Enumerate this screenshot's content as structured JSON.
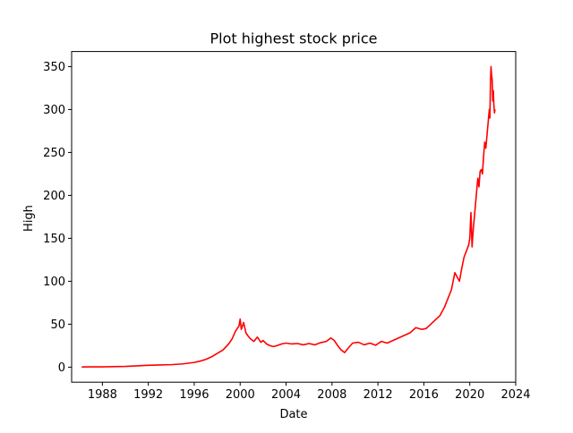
{
  "chart_data": {
    "type": "line",
    "title": "Plot highest stock price",
    "xlabel": "Date",
    "ylabel": "High",
    "x_ticks": [
      "1988",
      "1992",
      "1996",
      "2000",
      "2004",
      "2008",
      "2012",
      "2016",
      "2020",
      "2024"
    ],
    "y_ticks": [
      "0",
      "50",
      "100",
      "150",
      "200",
      "250",
      "300",
      "350"
    ],
    "xlim": [
      1985.32,
      2024.0
    ],
    "ylim": [
      -17.5,
      367.5
    ],
    "grid": false,
    "legend": "none",
    "series": [
      {
        "color": "#ff0000",
        "x": [
          1986.2,
          1987.0,
          1988.0,
          1989.0,
          1990.0,
          1991.0,
          1992.0,
          1993.0,
          1994.0,
          1995.0,
          1996.0,
          1996.5,
          1997.0,
          1997.5,
          1998.0,
          1998.5,
          1999.0,
          1999.3,
          1999.6,
          1999.9,
          2000.0,
          2000.1,
          2000.3,
          2000.5,
          2000.7,
          2000.9,
          2001.2,
          2001.5,
          2001.8,
          2002.0,
          2002.3,
          2002.6,
          2002.9,
          2003.2,
          2003.6,
          2004.0,
          2004.5,
          2005.0,
          2005.5,
          2006.0,
          2006.5,
          2007.0,
          2007.5,
          2007.9,
          2008.2,
          2008.5,
          2008.8,
          2009.1,
          2009.4,
          2009.8,
          2010.3,
          2010.8,
          2011.3,
          2011.8,
          2012.3,
          2012.8,
          2013.3,
          2013.8,
          2014.3,
          2014.8,
          2015.3,
          2015.8,
          2016.2,
          2016.6,
          2017.0,
          2017.4,
          2017.8,
          2018.1,
          2018.4,
          2018.7,
          2018.9,
          2019.1,
          2019.3,
          2019.5,
          2019.7,
          2019.9,
          2020.0,
          2020.1,
          2020.2,
          2020.3,
          2020.4,
          2020.5,
          2020.6,
          2020.7,
          2020.8,
          2020.9,
          2021.0,
          2021.1,
          2021.2,
          2021.3,
          2021.4,
          2021.5,
          2021.6,
          2021.7,
          2021.75,
          2021.8,
          2021.85,
          2021.9,
          2021.95,
          2022.0,
          2022.05,
          2022.1,
          2022.15,
          2022.2
        ],
        "values": [
          0.2,
          0.3,
          0.4,
          0.6,
          0.9,
          1.5,
          2.2,
          2.6,
          2.9,
          3.8,
          5.5,
          7.0,
          9.0,
          12.0,
          16.0,
          20.0,
          27.0,
          33.0,
          42.0,
          48.0,
          56.0,
          44.0,
          52.0,
          40.0,
          36.0,
          33.0,
          30.0,
          35.0,
          29.0,
          31.0,
          27.0,
          25.0,
          24.0,
          25.0,
          27.0,
          28.0,
          27.0,
          27.5,
          26.0,
          27.5,
          26.0,
          28.5,
          30.0,
          34.0,
          31.0,
          25.0,
          20.0,
          17.0,
          22.0,
          28.0,
          29.0,
          26.0,
          28.0,
          25.5,
          30.0,
          28.0,
          31.0,
          34.0,
          37.0,
          40.0,
          46.0,
          44.0,
          45.0,
          50.0,
          55.0,
          60.0,
          70.0,
          80.0,
          90.0,
          110.0,
          105.0,
          100.0,
          115.0,
          128.0,
          135.0,
          142.0,
          150.0,
          180.0,
          140.0,
          160.0,
          175.0,
          190.0,
          205.0,
          220.0,
          210.0,
          228.0,
          230.0,
          225.0,
          245.0,
          262.0,
          255.0,
          270.0,
          285.0,
          300.0,
          290.0,
          330.0,
          350.0,
          340.0,
          335.0,
          310.0,
          322.0,
          305.0,
          296.0,
          300.0
        ]
      }
    ]
  }
}
